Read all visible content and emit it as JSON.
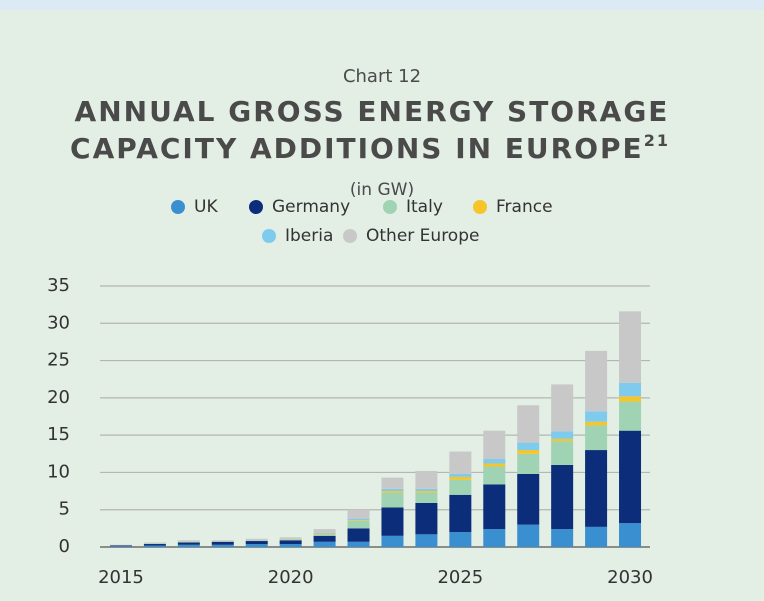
{
  "chart_data": {
    "type": "stacked_bar",
    "label": "Chart 12",
    "title_lines": [
      "ANNUAL GROSS ENERGY STORAGE",
      "CAPACITY ADDITIONS IN EUROPE"
    ],
    "title_footnote": "21",
    "subtitle": "(in GW)",
    "x": [
      2015,
      2016,
      2017,
      2018,
      2019,
      2020,
      2021,
      2022,
      2023,
      2024,
      2025,
      2026,
      2027,
      2028,
      2029,
      2030
    ],
    "xlim": [
      2014.5,
      2030.5
    ],
    "xticks": [
      2015,
      2020,
      2025,
      2030
    ],
    "ylim": [
      0,
      35
    ],
    "yticks": [
      0,
      5,
      10,
      15,
      20,
      25,
      30,
      35
    ],
    "grid": true,
    "series": [
      {
        "name": "UK",
        "color": "#3a8fd0",
        "values": [
          0.1,
          0.2,
          0.3,
          0.3,
          0.4,
          0.4,
          0.7,
          0.7,
          1.5,
          1.7,
          2,
          2.4,
          3,
          2.4,
          2.7,
          3.2
        ]
      },
      {
        "name": "Germany",
        "color": "#0b2d7a",
        "values": [
          0.1,
          0.2,
          0.3,
          0.4,
          0.4,
          0.5,
          0.8,
          1.8,
          3.8,
          4.2,
          5,
          6,
          6.8,
          8.6,
          10.3,
          12.4
        ]
      },
      {
        "name": "Italy",
        "color": "#9fd3b4",
        "values": [
          0,
          0.05,
          0.1,
          0.05,
          0.1,
          0.1,
          0.2,
          1,
          2,
          1.4,
          2,
          2.4,
          2.7,
          3.2,
          3.3,
          3.9
        ]
      },
      {
        "name": "France",
        "color": "#f5c52a",
        "values": [
          0,
          0,
          0,
          0,
          0,
          0.05,
          0.1,
          0.1,
          0.2,
          0.2,
          0.4,
          0.4,
          0.5,
          0.3,
          0.5,
          0.7
        ]
      },
      {
        "name": "Iberia",
        "color": "#7fcbee",
        "values": [
          0,
          0,
          0,
          0,
          0,
          0.05,
          0.1,
          0.2,
          0.3,
          0.3,
          0.4,
          0.6,
          1,
          1,
          1.4,
          1.8
        ]
      },
      {
        "name": "Other Europe",
        "color": "#c8c8c8",
        "values": [
          0.1,
          0.15,
          0.2,
          0.15,
          0.2,
          0.2,
          0.5,
          1.2,
          1.5,
          2.4,
          3,
          3.8,
          5,
          6.3,
          8.1,
          9.6
        ]
      }
    ]
  }
}
